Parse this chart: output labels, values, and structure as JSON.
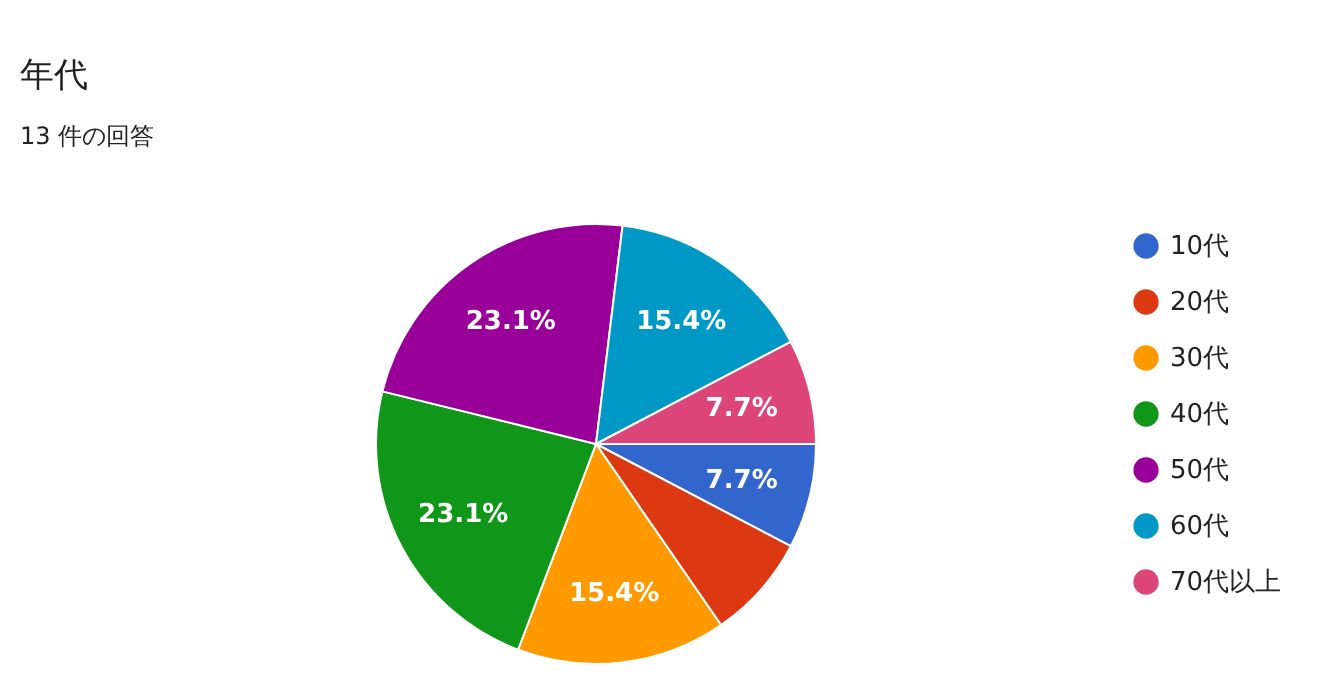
{
  "chart_data": {
    "type": "pie",
    "title": "年代",
    "subtitle": "13 件の回答",
    "categories": [
      "10代",
      "20代",
      "30代",
      "40代",
      "50代",
      "60代",
      "70代以上"
    ],
    "values": [
      7.69,
      7.69,
      15.38,
      23.08,
      23.08,
      15.38,
      7.69
    ],
    "value_labels": [
      "7.7%",
      null,
      "15.4%",
      "23.1%",
      "23.1%",
      "15.4%",
      "7.7%"
    ],
    "colors": [
      "#3366cc",
      "#dc3912",
      "#ff9900",
      "#109618",
      "#990099",
      "#0099c6",
      "#dd4477"
    ],
    "legend": "right"
  }
}
